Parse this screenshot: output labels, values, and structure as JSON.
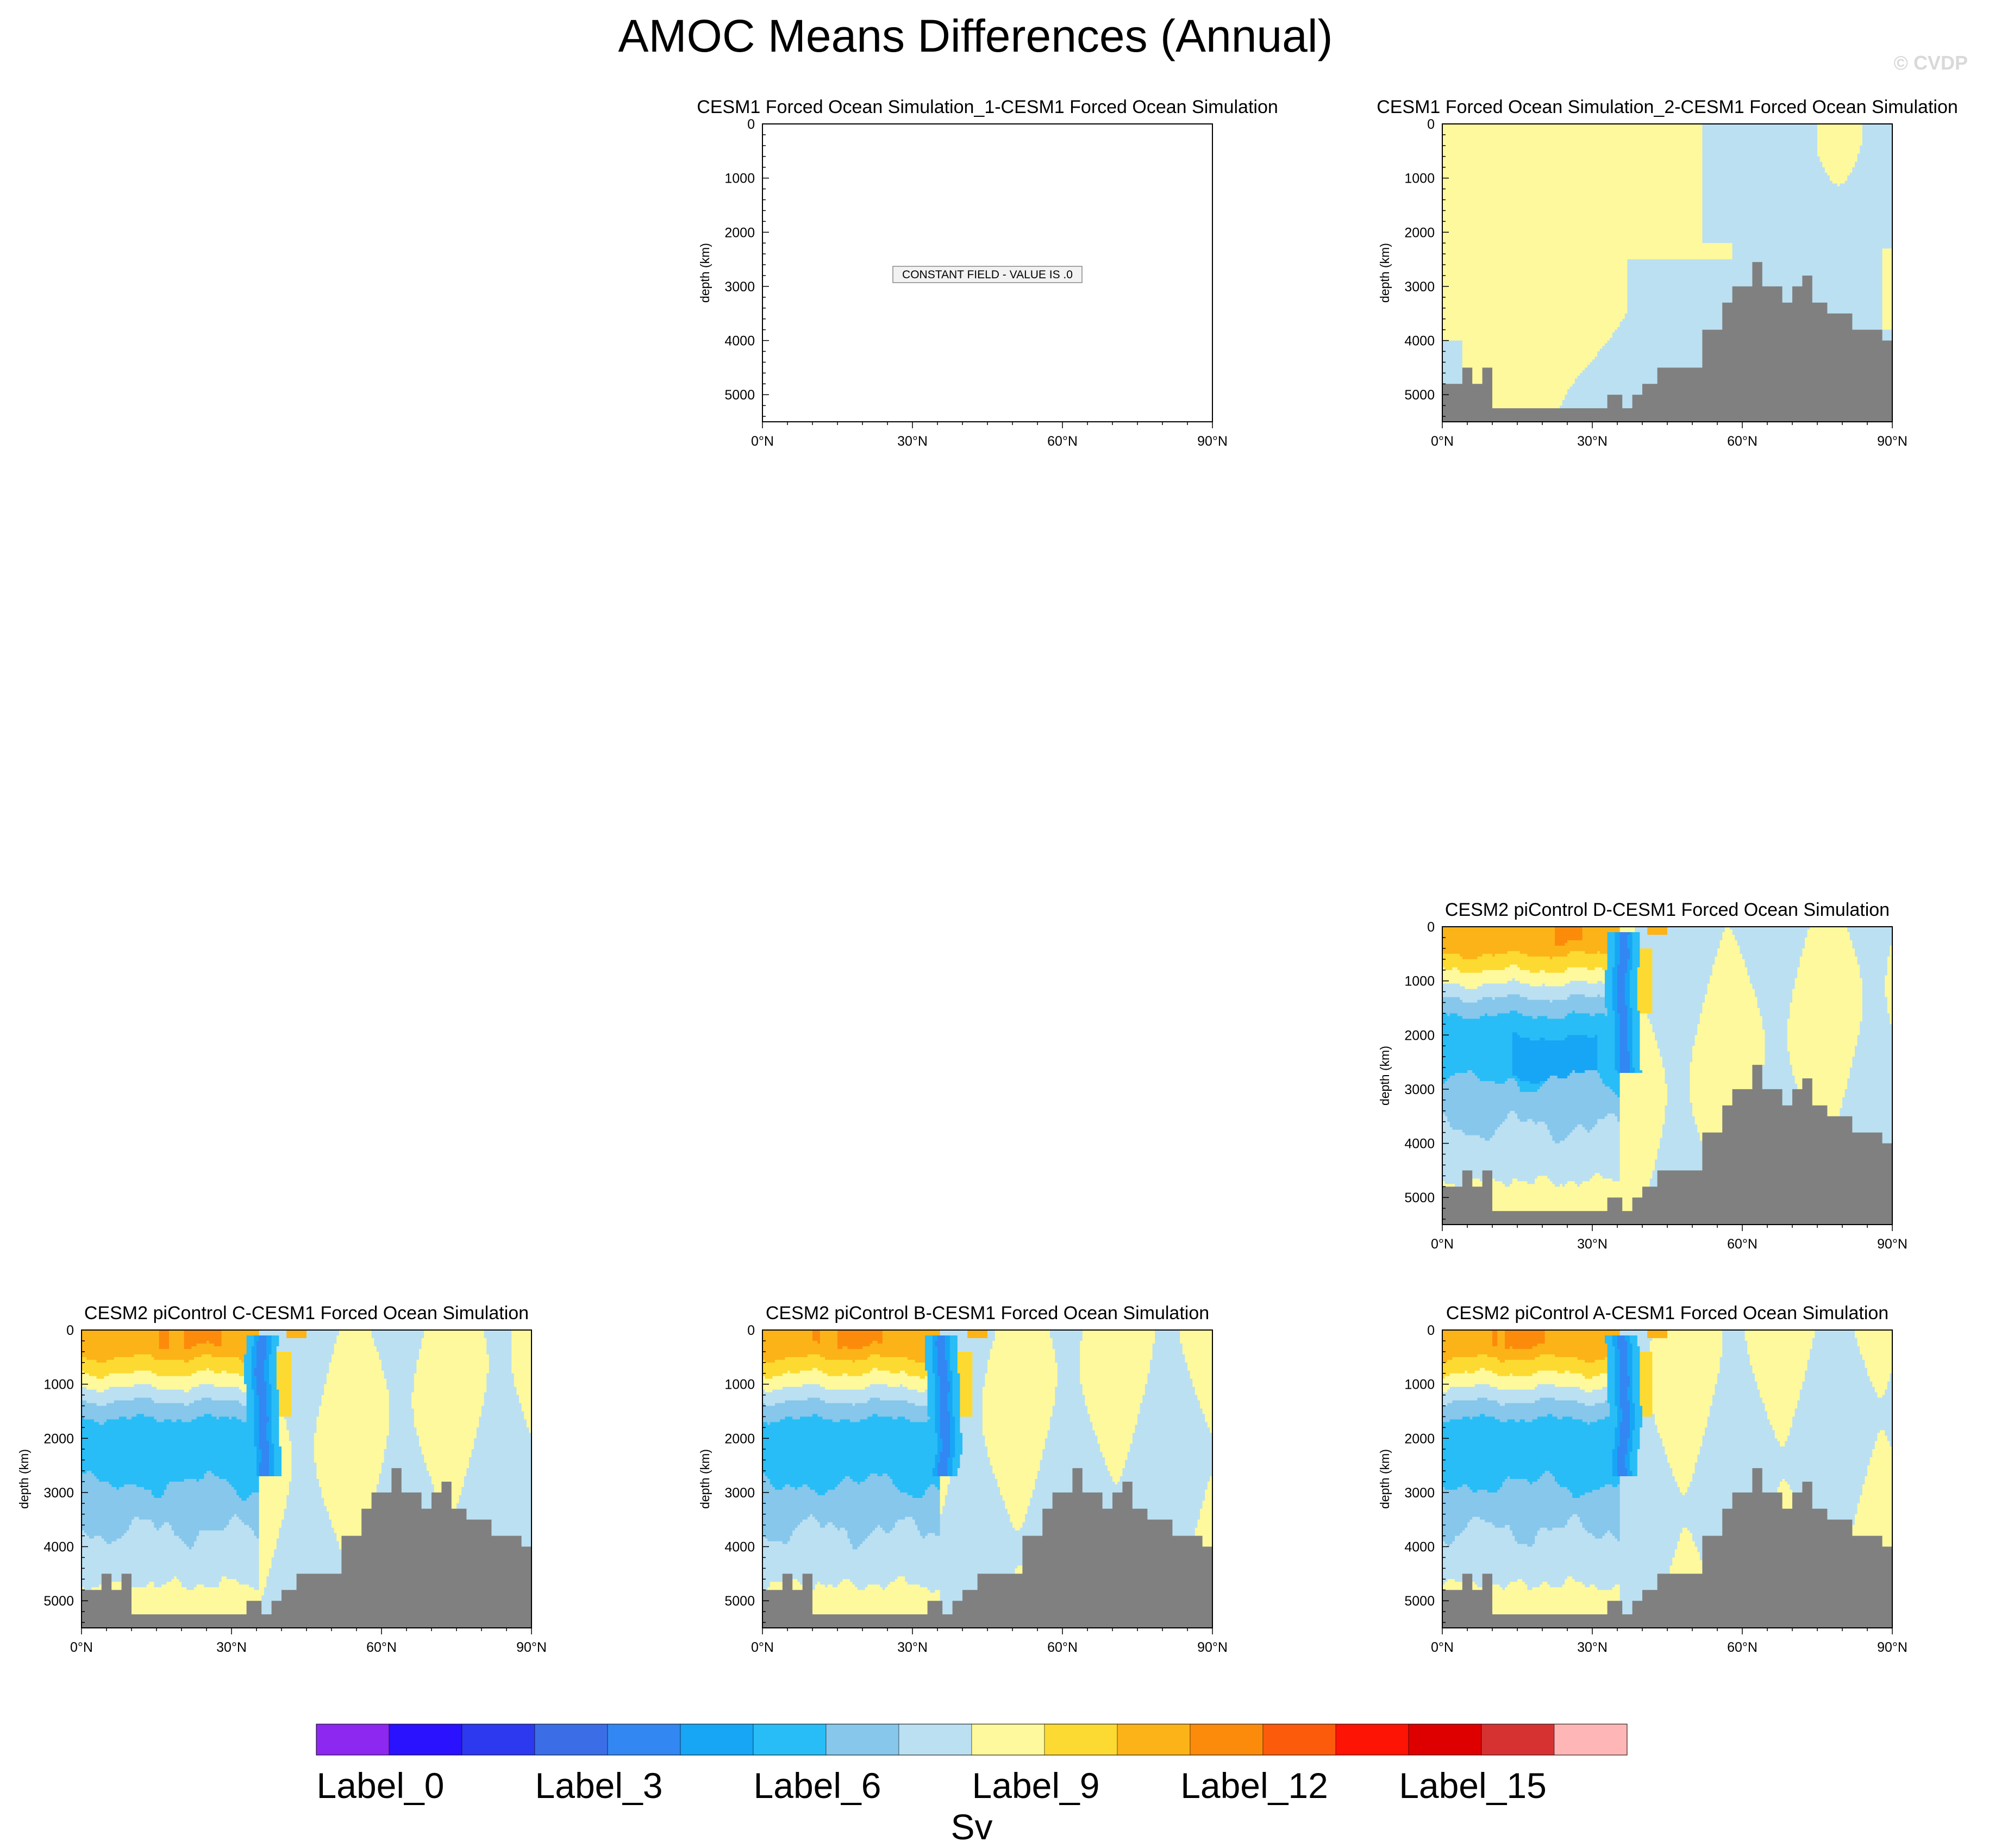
{
  "page": {
    "title": "AMOC Means Differences (Annual)",
    "copyright": "© CVDP"
  },
  "colorbar": {
    "colors": [
      "#8c28ef",
      "#2a12ff",
      "#2c39ef",
      "#3b6ee6",
      "#3287f3",
      "#17a6f6",
      "#28bdf6",
      "#86c7eb",
      "#bbe0f2",
      "#fef99c",
      "#fdda31",
      "#fcb318",
      "#fc8b0b",
      "#fc5b0b",
      "#fd1405",
      "#de0000",
      "#d63232",
      "#feb6b6"
    ],
    "labels": [
      "Label_0",
      "Label_3",
      "Label_6",
      "Label_9",
      "Label_12",
      "Label_15"
    ],
    "unit": "Sv"
  },
  "chart_data": [
    {
      "type": "heatmap",
      "title": "CESM1 Forced Ocean Simulation_1-CESM1 Forced Ocean Simulation",
      "xlabel": "",
      "ylabel": "depth (km)",
      "xlim": [
        0,
        90
      ],
      "ylim": [
        5500,
        0
      ],
      "x_ticks": [
        "0°N",
        "30°N",
        "60°N",
        "90°N"
      ],
      "y_ticks": [
        "0",
        "1000",
        "2000",
        "3000",
        "4000",
        "5000"
      ],
      "constant_field": true,
      "annotation": "CONSTANT FIELD - VALUE IS .0"
    },
    {
      "type": "heatmap",
      "title": "CESM1 Forced Ocean Simulation_2-CESM1 Forced Ocean Simulation",
      "xlabel": "",
      "ylabel": "depth (km)",
      "xlim": [
        0,
        90
      ],
      "ylim": [
        5500,
        0
      ],
      "x_ticks": [
        "0°N",
        "30°N",
        "60°N",
        "90°N"
      ],
      "y_ticks": [
        "0",
        "1000",
        "2000",
        "3000",
        "4000",
        "5000"
      ],
      "pattern": "weak",
      "sample_values": [
        {
          "lat": 10,
          "depth": 2500,
          "level": 9
        },
        {
          "lat": 55,
          "depth": 1000,
          "level": 8
        },
        {
          "lat": 40,
          "depth": 3500,
          "level": 8
        }
      ]
    },
    {
      "type": "heatmap",
      "title": "CESM2 piControl D-CESM1 Forced Ocean Simulation",
      "xlabel": "",
      "ylabel": "depth (km)",
      "xlim": [
        0,
        90
      ],
      "ylim": [
        5500,
        0
      ],
      "x_ticks": [
        "0°N",
        "30°N",
        "60°N",
        "90°N"
      ],
      "y_ticks": [
        "0",
        "1000",
        "2000",
        "3000",
        "4000",
        "5000"
      ],
      "pattern": "strong",
      "sample_values": [
        {
          "lat": 15,
          "depth": 300,
          "level": 11
        },
        {
          "lat": 15,
          "depth": 1900,
          "level": 6
        },
        {
          "lat": 36,
          "depth": 1500,
          "level": 5
        },
        {
          "lat": 20,
          "depth": 4200,
          "level": 8
        }
      ]
    },
    {
      "type": "heatmap",
      "title": "CESM2 piControl C-CESM1 Forced Ocean Simulation",
      "xlabel": "",
      "ylabel": "depth (km)",
      "xlim": [
        0,
        90
      ],
      "ylim": [
        5500,
        0
      ],
      "x_ticks": [
        "0°N",
        "30°N",
        "60°N",
        "90°N"
      ],
      "y_ticks": [
        "0",
        "1000",
        "2000",
        "3000",
        "4000",
        "5000"
      ],
      "pattern": "strong",
      "sample_values": [
        {
          "lat": 15,
          "depth": 300,
          "level": 11
        },
        {
          "lat": 15,
          "depth": 2000,
          "level": 6
        },
        {
          "lat": 36,
          "depth": 1500,
          "level": 5
        },
        {
          "lat": 20,
          "depth": 4400,
          "level": 8
        }
      ]
    },
    {
      "type": "heatmap",
      "title": "CESM2 piControl B-CESM1 Forced Ocean Simulation",
      "xlabel": "",
      "ylabel": "depth (km)",
      "xlim": [
        0,
        90
      ],
      "ylim": [
        5500,
        0
      ],
      "x_ticks": [
        "0°N",
        "30°N",
        "60°N",
        "90°N"
      ],
      "y_ticks": [
        "0",
        "1000",
        "2000",
        "3000",
        "4000",
        "5000"
      ],
      "pattern": "strong",
      "sample_values": [
        {
          "lat": 15,
          "depth": 300,
          "level": 11
        },
        {
          "lat": 25,
          "depth": 2400,
          "level": 5
        },
        {
          "lat": 36,
          "depth": 1500,
          "level": 5
        },
        {
          "lat": 20,
          "depth": 4400,
          "level": 8
        }
      ]
    },
    {
      "type": "heatmap",
      "title": "CESM2 piControl A-CESM1 Forced Ocean Simulation",
      "xlabel": "",
      "ylabel": "depth (km)",
      "xlim": [
        0,
        90
      ],
      "ylim": [
        5500,
        0
      ],
      "x_ticks": [
        "0°N",
        "30°N",
        "60°N",
        "90°N"
      ],
      "y_ticks": [
        "0",
        "1000",
        "2000",
        "3000",
        "4000",
        "5000"
      ],
      "pattern": "strong",
      "sample_values": [
        {
          "lat": 15,
          "depth": 300,
          "level": 11
        },
        {
          "lat": 15,
          "depth": 2000,
          "level": 6
        },
        {
          "lat": 36,
          "depth": 1500,
          "level": 5
        },
        {
          "lat": 20,
          "depth": 4400,
          "level": 8
        }
      ]
    }
  ],
  "bathymetry": {
    "lat": [
      0,
      4,
      6,
      8,
      10,
      20,
      33,
      36,
      38,
      40,
      43,
      50,
      52,
      56,
      58,
      62,
      64,
      68,
      70,
      72,
      74,
      77,
      79,
      82,
      88,
      90
    ],
    "depth": [
      4800,
      4500,
      4800,
      4500,
      5250,
      5250,
      5000,
      5250,
      5000,
      4800,
      4500,
      4500,
      3800,
      3300,
      3000,
      2550,
      3000,
      3300,
      3000,
      2800,
      3300,
      3500,
      3500,
      3800,
      4000,
      4000
    ]
  }
}
